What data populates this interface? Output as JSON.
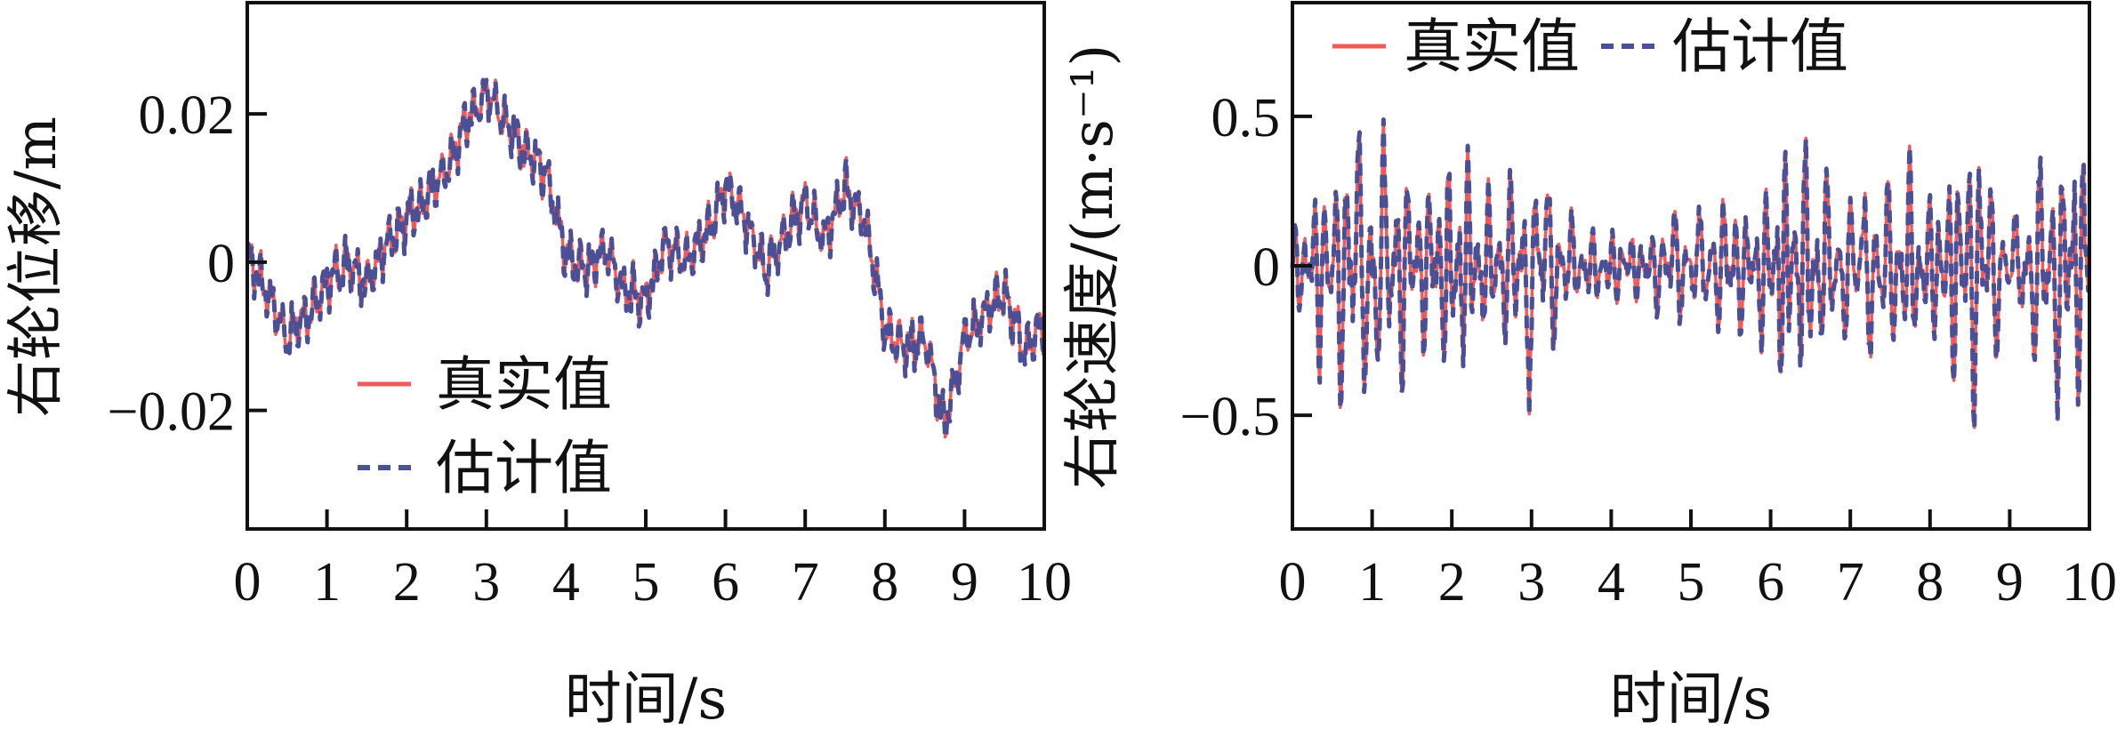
{
  "chart_data": [
    {
      "type": "line",
      "title": "",
      "xlabel": "时间/s",
      "ylabel": "右轮位移/m",
      "xlim": [
        0,
        10
      ],
      "ylim": [
        -0.036,
        0.035
      ],
      "xticks": [
        0,
        1,
        2,
        3,
        4,
        5,
        6,
        7,
        8,
        9,
        10
      ],
      "xtick_labels": [
        "0",
        "1",
        "2",
        "3",
        "4",
        "5",
        "6",
        "7",
        "8",
        "9",
        "10"
      ],
      "yticks": [
        -0.02,
        0,
        0.02
      ],
      "ytick_labels": [
        "−0.02",
        "0",
        "0.02"
      ],
      "legend_position": "lower-left",
      "colors": {
        "true": "#f05a5a",
        "estimate": "#4a4f96"
      },
      "series": [
        {
          "name": "真实值",
          "style": "solid",
          "x": [
            0,
            0.25,
            0.5,
            0.75,
            1,
            1.25,
            1.5,
            1.75,
            2,
            2.25,
            2.5,
            2.75,
            3,
            3.25,
            3.5,
            3.75,
            4,
            4.25,
            4.5,
            4.75,
            5,
            5.25,
            5.5,
            5.75,
            6,
            6.25,
            6.5,
            6.75,
            7,
            7.25,
            7.5,
            7.75,
            8,
            8.25,
            8.5,
            8.75,
            9,
            9.25,
            9.5,
            9.75,
            10
          ],
          "y": [
            0.001,
            -0.004,
            -0.01,
            -0.007,
            -0.003,
            0.0,
            -0.003,
            0.003,
            0.006,
            0.009,
            0.012,
            0.019,
            0.023,
            0.019,
            0.015,
            0.012,
            0.001,
            -0.001,
            0.002,
            -0.004,
            -0.005,
            0.003,
            0.0,
            0.004,
            0.01,
            0.006,
            -0.001,
            0.004,
            0.008,
            0.003,
            0.01,
            0.006,
            -0.009,
            -0.012,
            -0.01,
            -0.022,
            -0.01,
            -0.007,
            -0.004,
            -0.012,
            -0.008
          ]
        },
        {
          "name": "估计值",
          "style": "dashed",
          "x": [
            0,
            0.25,
            0.5,
            0.75,
            1,
            1.25,
            1.5,
            1.75,
            2,
            2.25,
            2.5,
            2.75,
            3,
            3.25,
            3.5,
            3.75,
            4,
            4.25,
            4.5,
            4.75,
            5,
            5.25,
            5.5,
            5.75,
            6,
            6.25,
            6.5,
            6.75,
            7,
            7.25,
            7.5,
            7.75,
            8,
            8.25,
            8.5,
            8.75,
            9,
            9.25,
            9.5,
            9.75,
            10
          ],
          "y": [
            0.001,
            -0.004,
            -0.01,
            -0.007,
            -0.003,
            0.0,
            -0.003,
            0.003,
            0.006,
            0.009,
            0.012,
            0.019,
            0.023,
            0.019,
            0.015,
            0.012,
            0.001,
            -0.001,
            0.002,
            -0.004,
            -0.005,
            0.003,
            0.0,
            0.004,
            0.01,
            0.006,
            -0.001,
            0.004,
            0.008,
            0.003,
            0.01,
            0.006,
            -0.009,
            -0.012,
            -0.01,
            -0.022,
            -0.01,
            -0.007,
            -0.004,
            -0.012,
            -0.008
          ]
        }
      ]
    },
    {
      "type": "line",
      "title": "",
      "xlabel": "时间/s",
      "ylabel": "右轮速度/(m·s⁻¹)",
      "xlim": [
        0,
        10
      ],
      "ylim": [
        -0.88,
        0.88
      ],
      "xticks": [
        0,
        1,
        2,
        3,
        4,
        5,
        6,
        7,
        8,
        9,
        10
      ],
      "xtick_labels": [
        "0",
        "1",
        "2",
        "3",
        "4",
        "5",
        "6",
        "7",
        "8",
        "9",
        "10"
      ],
      "yticks": [
        -0.5,
        0,
        0.5
      ],
      "ytick_labels": [
        "−0.5",
        "0",
        "0.5"
      ],
      "legend_position": "top",
      "colors": {
        "true": "#f05a5a",
        "estimate": "#4a4f96"
      },
      "series": [
        {
          "name": "真实值",
          "style": "solid",
          "x": [
            0,
            0.25,
            0.5,
            0.75,
            1,
            1.25,
            1.5,
            1.75,
            2,
            2.25,
            2.5,
            2.75,
            3,
            3.25,
            3.5,
            3.75,
            4,
            4.25,
            4.5,
            4.75,
            5,
            5.25,
            5.5,
            5.75,
            6,
            6.25,
            6.5,
            6.75,
            7,
            7.25,
            7.5,
            7.75,
            8,
            8.25,
            8.5,
            8.75,
            9,
            9.25,
            9.5,
            9.75,
            10
          ],
          "envelope": [
            0.12,
            0.3,
            0.42,
            0.52,
            0.48,
            0.42,
            0.35,
            0.3,
            0.42,
            0.35,
            0.25,
            0.32,
            0.48,
            0.3,
            0.18,
            0.12,
            0.15,
            0.12,
            0.14,
            0.22,
            0.18,
            0.22,
            0.28,
            0.22,
            0.38,
            0.5,
            0.38,
            0.3,
            0.28,
            0.32,
            0.3,
            0.35,
            0.3,
            0.38,
            0.52,
            0.4,
            0.12,
            0.35,
            0.45,
            0.52,
            0.4
          ]
        },
        {
          "name": "估计值",
          "style": "dashed",
          "x": [
            0,
            0.25,
            0.5,
            0.75,
            1,
            1.25,
            1.5,
            1.75,
            2,
            2.25,
            2.5,
            2.75,
            3,
            3.25,
            3.5,
            3.75,
            4,
            4.25,
            4.5,
            4.75,
            5,
            5.25,
            5.5,
            5.75,
            6,
            6.25,
            6.5,
            6.75,
            7,
            7.25,
            7.5,
            7.75,
            8,
            8.25,
            8.5,
            8.75,
            9,
            9.25,
            9.5,
            9.75,
            10
          ],
          "envelope": [
            0.12,
            0.3,
            0.42,
            0.52,
            0.48,
            0.42,
            0.35,
            0.3,
            0.42,
            0.35,
            0.25,
            0.32,
            0.48,
            0.3,
            0.18,
            0.12,
            0.15,
            0.12,
            0.14,
            0.22,
            0.18,
            0.22,
            0.28,
            0.22,
            0.38,
            0.5,
            0.38,
            0.3,
            0.28,
            0.32,
            0.3,
            0.35,
            0.3,
            0.38,
            0.52,
            0.4,
            0.12,
            0.35,
            0.45,
            0.52,
            0.4
          ]
        }
      ]
    }
  ]
}
